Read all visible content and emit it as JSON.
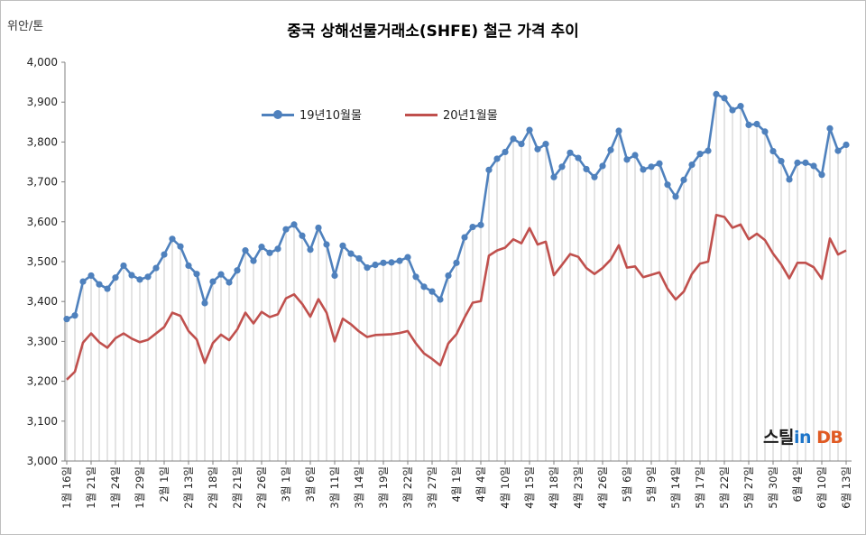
{
  "title": "중국 상해선물거래소(SHFE)  철근 가격 추이",
  "unit_label": "위안/톤",
  "logo": {
    "part1": "스틸",
    "part2": "in",
    "part3": "DB"
  },
  "colors": {
    "series1": "#4f81bd",
    "series2": "#c0504d",
    "droplines": "#c8c8c8",
    "axis": "#808080"
  },
  "chart_data": {
    "type": "line",
    "ylim": [
      3000,
      4000
    ],
    "y_ticks": [
      "3,000",
      "3,100",
      "3,200",
      "3,300",
      "3,400",
      "3,500",
      "3,600",
      "3,700",
      "3,800",
      "3,900",
      "4,000"
    ],
    "y_tick_values": [
      3000,
      3100,
      3200,
      3300,
      3400,
      3500,
      3600,
      3700,
      3800,
      3900,
      4000
    ],
    "x_tick_labels": [
      "1월 16일",
      "1월 21일",
      "1월 24일",
      "1월 29일",
      "2월 1일",
      "2월 13일",
      "2월 18일",
      "2월 21일",
      "2월 26일",
      "3월 1일",
      "3월 6일",
      "3월 11일",
      "3월 14일",
      "3월 19일",
      "3월 22일",
      "3월 27일",
      "4월 1일",
      "4월 4일",
      "4월 10일",
      "4월 15일",
      "4월 18일",
      "4월 23일",
      "4월 26일",
      "5월 6일",
      "5월 9일",
      "5월 14일",
      "5월 17일",
      "5월 22일",
      "5월 27일",
      "5월 30일",
      "6월 4일",
      "6월 10일",
      "6월 13일"
    ],
    "grid": false,
    "legend_position": "top-left",
    "series": [
      {
        "name": "19년10월물",
        "color": "#4f81bd",
        "markers": true,
        "values": [
          3356,
          3365,
          3450,
          3465,
          3443,
          3432,
          3460,
          3490,
          3466,
          3455,
          3462,
          3484,
          3518,
          3557,
          3538,
          3490,
          3469,
          3396,
          3450,
          3468,
          3448,
          3478,
          3528,
          3502,
          3537,
          3522,
          3532,
          3581,
          3593,
          3565,
          3530,
          3585,
          3543,
          3465,
          3540,
          3520,
          3508,
          3485,
          3492,
          3497,
          3498,
          3502,
          3511,
          3462,
          3437,
          3425,
          3405,
          3465,
          3497,
          3561,
          3587,
          3592,
          3730,
          3758,
          3775,
          3808,
          3795,
          3830,
          3782,
          3795,
          3712,
          3738,
          3773,
          3760,
          3732,
          3712,
          3740,
          3780,
          3828,
          3756,
          3767,
          3731,
          3738,
          3746,
          3693,
          3663,
          3705,
          3743,
          3770,
          3778,
          3920,
          3910,
          3880,
          3890,
          3843,
          3845,
          3826,
          3777,
          3752,
          3706,
          3748,
          3748,
          3740,
          3718,
          3834,
          3778,
          3793
        ]
      },
      {
        "name": "20년1월물",
        "color": "#c0504d",
        "markers": false,
        "values": [
          3204,
          3224,
          3297,
          3320,
          3298,
          3284,
          3308,
          3320,
          3307,
          3298,
          3304,
          3320,
          3336,
          3372,
          3364,
          3326,
          3305,
          3246,
          3296,
          3317,
          3303,
          3330,
          3372,
          3345,
          3374,
          3361,
          3368,
          3408,
          3418,
          3394,
          3362,
          3406,
          3372,
          3300,
          3357,
          3343,
          3325,
          3311,
          3316,
          3317,
          3318,
          3321,
          3326,
          3295,
          3270,
          3256,
          3240,
          3295,
          3318,
          3360,
          3397,
          3401,
          3515,
          3528,
          3535,
          3556,
          3546,
          3584,
          3543,
          3550,
          3466,
          3492,
          3519,
          3512,
          3484,
          3469,
          3484,
          3505,
          3541,
          3485,
          3488,
          3461,
          3467,
          3473,
          3432,
          3405,
          3425,
          3469,
          3495,
          3500,
          3617,
          3612,
          3585,
          3593,
          3556,
          3570,
          3554,
          3520,
          3493,
          3458,
          3497,
          3497,
          3486,
          3457,
          3558,
          3518,
          3528
        ]
      }
    ]
  }
}
